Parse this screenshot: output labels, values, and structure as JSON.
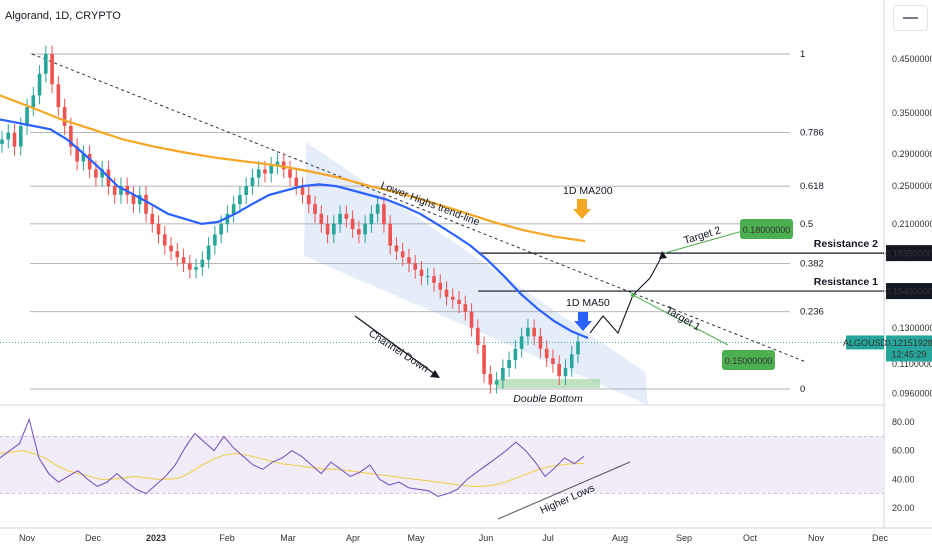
{
  "header": {
    "title": "Algorand, 1D, CRYPTO"
  },
  "chart_data": {
    "type": "candlestick",
    "symbol": "ALGOUSD",
    "last_price": "0.12151928",
    "countdown": "12:45:29",
    "y_scale": "log",
    "price_axis_ticks": [
      "0.45000000",
      "0.35000000",
      "0.29000000",
      "0.25000000",
      "0.21000000",
      "0.13000000",
      "0.11000000",
      "0.09600000"
    ],
    "rsi_axis_ticks": [
      "80.00",
      "60.00",
      "40.00",
      "20.00"
    ],
    "x_axis_ticks": [
      "Nov",
      "Dec",
      "2023",
      "Feb",
      "Mar",
      "Apr",
      "May",
      "Jun",
      "Jul",
      "Aug",
      "Sep",
      "Oct",
      "Nov",
      "Dec"
    ],
    "fib_levels": [
      {
        "label": "1",
        "price": 0.46
      },
      {
        "label": "0.786",
        "price": 0.32
      },
      {
        "label": "0.618",
        "price": 0.25
      },
      {
        "label": "0.5",
        "price": 0.21
      },
      {
        "label": "0.382",
        "price": 0.175
      },
      {
        "label": "0.236",
        "price": 0.14
      },
      {
        "label": "0",
        "price": 0.098
      }
    ],
    "resistances": [
      {
        "label": "Resistance 2",
        "price": "0.18350000",
        "value": 0.1835
      },
      {
        "label": "Resistance 1",
        "price": "0.15400000",
        "value": 0.154
      }
    ],
    "targets": [
      {
        "label": "Target 2",
        "price": "0.18000000",
        "value": 0.18
      },
      {
        "label": "Target 1",
        "price": "0.15000000",
        "value": 0.15
      }
    ],
    "annotations": {
      "ma200": "1D MA200",
      "ma50": "1D MA50",
      "trend_line": "Lower Highs trend-line",
      "channel": "Channel Down",
      "double_bottom": "Double Bottom",
      "higher_lows": "Higher Lows"
    },
    "ohlc_close_series": [
      0.31,
      0.32,
      0.3,
      0.33,
      0.36,
      0.38,
      0.42,
      0.46,
      0.4,
      0.36,
      0.33,
      0.3,
      0.28,
      0.29,
      0.27,
      0.26,
      0.27,
      0.25,
      0.24,
      0.25,
      0.24,
      0.23,
      0.24,
      0.22,
      0.21,
      0.2,
      0.19,
      0.185,
      0.18,
      0.175,
      0.17,
      0.172,
      0.178,
      0.19,
      0.2,
      0.21,
      0.22,
      0.23,
      0.24,
      0.25,
      0.26,
      0.27,
      0.265,
      0.275,
      0.28,
      0.27,
      0.26,
      0.25,
      0.24,
      0.23,
      0.22,
      0.21,
      0.2,
      0.21,
      0.22,
      0.215,
      0.205,
      0.2,
      0.21,
      0.22,
      0.23,
      0.21,
      0.19,
      0.185,
      0.18,
      0.175,
      0.17,
      0.165,
      0.165,
      0.16,
      0.155,
      0.15,
      0.148,
      0.145,
      0.14,
      0.13,
      0.12,
      0.105,
      0.1,
      0.102,
      0.108,
      0.112,
      0.118,
      0.125,
      0.13,
      0.125,
      0.118,
      0.113,
      0.11,
      0.104,
      0.108,
      0.115,
      0.122
    ],
    "ma50_series": [
      0.34,
      0.335,
      0.33,
      0.325,
      0.31,
      0.29,
      0.27,
      0.25,
      0.24,
      0.23,
      0.22,
      0.215,
      0.21,
      0.212,
      0.22,
      0.23,
      0.24,
      0.245,
      0.25,
      0.252,
      0.25,
      0.245,
      0.24,
      0.235,
      0.228,
      0.22,
      0.21,
      0.2,
      0.19,
      0.178,
      0.165,
      0.152,
      0.142,
      0.134,
      0.128,
      0.124
    ],
    "ma200_series": [
      0.38,
      0.36,
      0.34,
      0.325,
      0.31,
      0.3,
      0.292,
      0.285,
      0.28,
      0.275,
      0.268,
      0.26,
      0.25,
      0.242,
      0.232,
      0.222,
      0.212,
      0.204,
      0.198,
      0.194
    ],
    "rsi_series": [
      55,
      60,
      65,
      82,
      55,
      44,
      38,
      42,
      46,
      40,
      35,
      38,
      44,
      38,
      33,
      30,
      36,
      42,
      50,
      62,
      72,
      66,
      60,
      70,
      62,
      56,
      50,
      47,
      52,
      55,
      60,
      56,
      50,
      44,
      52,
      47,
      42,
      45,
      50,
      40,
      36,
      38,
      34,
      33,
      32,
      28,
      30,
      33,
      40,
      45,
      50,
      55,
      60,
      66,
      60,
      52,
      42,
      48,
      55,
      51,
      56
    ],
    "rsi_ma_series": [
      58,
      59,
      60,
      58,
      55,
      50,
      46,
      44,
      42,
      40,
      40,
      41,
      42,
      41,
      40,
      40,
      41,
      45,
      50,
      54,
      57,
      58,
      57,
      55,
      53,
      51,
      50,
      49,
      48,
      47,
      47,
      46,
      45,
      44,
      43,
      42,
      41,
      40,
      39,
      38,
      37,
      36,
      35,
      35,
      36,
      38,
      41,
      44,
      47,
      49,
      50,
      51,
      51
    ]
  },
  "colors": {
    "up": "#26a69a",
    "down": "#ef5350",
    "ma50": "#2962ff",
    "ma200": "#f5a623",
    "rsi": "#7e57c2",
    "rsi_ma": "#f0d050",
    "target": "#4caf50"
  }
}
